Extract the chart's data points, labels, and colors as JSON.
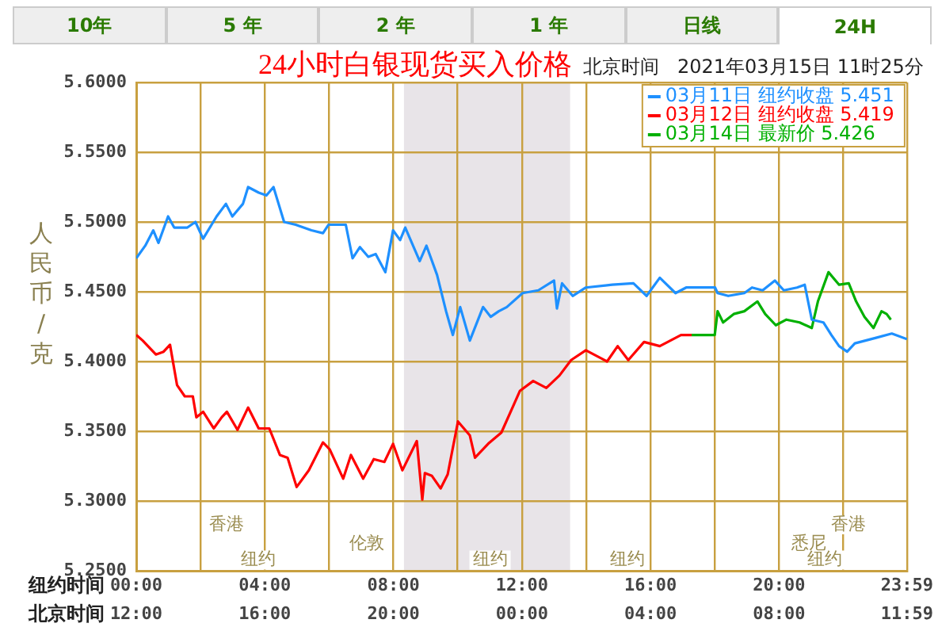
{
  "chart_data": {
    "type": "line",
    "title": "24小时白银现货买入价格",
    "subtitle": "北京时间   2021年03月15日 11时25分",
    "ylabel": "人民币/克",
    "xlabel": "纽约时间",
    "x2label": "北京时间",
    "xlim": [
      0,
      23.983
    ],
    "xticks": [
      {
        "value": 0,
        "label": "00:00"
      },
      {
        "value": 2,
        "label": null
      },
      {
        "value": 4,
        "label": "04:00"
      },
      {
        "value": 6,
        "label": null
      },
      {
        "value": 8,
        "label": "08:00"
      },
      {
        "value": 10,
        "label": null
      },
      {
        "value": 12,
        "label": "12:00"
      },
      {
        "value": 14,
        "label": null
      },
      {
        "value": 16,
        "label": "16:00"
      },
      {
        "value": 18,
        "label": null
      },
      {
        "value": 20,
        "label": "20:00"
      },
      {
        "value": 22,
        "label": null
      },
      {
        "value": 23.983,
        "label": "23:59"
      }
    ],
    "x2lim": [
      "2021-03-14T12:00",
      "2021-03-15T11:59"
    ],
    "x2ticks": [
      {
        "value": "2021-03-14T12:00",
        "label": "12:00"
      },
      {
        "value": "2021-03-14T16:00",
        "label": "16:00"
      },
      {
        "value": "2021-03-14T20:00",
        "label": "20:00"
      },
      {
        "value": "2021-03-15T00:00",
        "label": "00:00"
      },
      {
        "value": "2021-03-15T04:00",
        "label": "04:00"
      },
      {
        "value": "2021-03-15T08:00",
        "label": "08:00"
      },
      {
        "value": "2021-03-15T11:59",
        "label": "11:59"
      }
    ],
    "ylim": [
      5.25,
      5.6
    ],
    "yticks": [
      {
        "value": 5.25,
        "label": "5.2500"
      },
      {
        "value": 5.3,
        "label": "5.3000"
      },
      {
        "value": 5.35,
        "label": "5.3500"
      },
      {
        "value": 5.4,
        "label": "5.4000"
      },
      {
        "value": 5.45,
        "label": "5.4500"
      },
      {
        "value": 5.5,
        "label": "5.5000"
      },
      {
        "value": 5.55,
        "label": "5.5500"
      },
      {
        "value": 5.6,
        "label": "5.6000"
      }
    ],
    "grid": true,
    "legend": "top right",
    "marker": "none",
    "line_style": "solid",
    "bands": [
      {
        "axis": "x",
        "from": 8.33,
        "to": 13.5,
        "color": "#e8e4e8"
      }
    ],
    "series": [
      {
        "name": "03月11日 纽约收盘 5.451",
        "color": "#1e90ff",
        "x": [
          0,
          0.28,
          0.53,
          0.69,
          0.99,
          1.18,
          1.59,
          1.84,
          2.08,
          2.5,
          2.79,
          2.99,
          3.32,
          3.48,
          3.81,
          4.05,
          4.27,
          4.6,
          4.96,
          5.45,
          5.81,
          5.98,
          6.52,
          6.73,
          6.96,
          7.22,
          7.45,
          7.75,
          7.99,
          8.21,
          8.37,
          8.82,
          9.03,
          9.36,
          9.64,
          9.85,
          10.08,
          10.38,
          10.79,
          11.03,
          11.28,
          11.53,
          12.02,
          12.51,
          13.0,
          13.09,
          13.25,
          13.58,
          13.99,
          14.81,
          15.47,
          15.88,
          16.29,
          16.78,
          17.11,
          18.01,
          18.09,
          18.42,
          18.92,
          19.16,
          19.49,
          19.87,
          20.15,
          20.56,
          20.8,
          21.02,
          21.38,
          21.63,
          21.87,
          22.12,
          22.36,
          23.02,
          23.51,
          23.98
        ],
        "values": [
          5.474,
          5.483,
          5.494,
          5.485,
          5.504,
          5.496,
          5.496,
          5.5,
          5.488,
          5.504,
          5.513,
          5.504,
          5.513,
          5.525,
          5.521,
          5.519,
          5.525,
          5.5,
          5.498,
          5.494,
          5.492,
          5.498,
          5.498,
          5.474,
          5.482,
          5.475,
          5.477,
          5.464,
          5.494,
          5.487,
          5.496,
          5.472,
          5.483,
          5.462,
          5.436,
          5.419,
          5.439,
          5.415,
          5.439,
          5.432,
          5.436,
          5.439,
          5.449,
          5.451,
          5.458,
          5.438,
          5.456,
          5.447,
          5.453,
          5.455,
          5.456,
          5.447,
          5.46,
          5.449,
          5.453,
          5.453,
          5.449,
          5.447,
          5.449,
          5.453,
          5.451,
          5.458,
          5.451,
          5.453,
          5.455,
          5.43,
          5.428,
          5.419,
          5.411,
          5.407,
          5.413,
          5.417,
          5.42,
          5.416
        ]
      },
      {
        "name": "03月12日 纽约收盘 5.419",
        "color": "#ff0000",
        "x": [
          0,
          0.2,
          0.61,
          0.85,
          1.05,
          1.27,
          1.51,
          1.76,
          1.87,
          2.08,
          2.41,
          2.66,
          2.82,
          3.15,
          3.48,
          3.81,
          4.14,
          4.47,
          4.71,
          4.99,
          5.37,
          5.81,
          6.02,
          6.44,
          6.68,
          7.06,
          7.39,
          7.72,
          7.99,
          8.28,
          8.73,
          8.9,
          8.98,
          9.2,
          9.47,
          9.69,
          10.01,
          10.38,
          10.54,
          10.95,
          11.36,
          11.94,
          12.35,
          12.76,
          13.17,
          13.53,
          13.99,
          14.65,
          14.98,
          15.31,
          15.8,
          16.29,
          16.95,
          17.28
        ],
        "values": [
          5.419,
          5.415,
          5.405,
          5.407,
          5.412,
          5.383,
          5.375,
          5.375,
          5.36,
          5.364,
          5.352,
          5.36,
          5.364,
          5.351,
          5.367,
          5.352,
          5.352,
          5.333,
          5.331,
          5.31,
          5.322,
          5.342,
          5.337,
          5.316,
          5.333,
          5.316,
          5.33,
          5.328,
          5.341,
          5.322,
          5.343,
          5.301,
          5.32,
          5.318,
          5.309,
          5.319,
          5.357,
          5.347,
          5.331,
          5.341,
          5.349,
          5.379,
          5.386,
          5.381,
          5.39,
          5.401,
          5.408,
          5.4,
          5.411,
          5.401,
          5.414,
          5.411,
          5.419,
          5.419
        ]
      },
      {
        "name": "03月14日 最新价 5.426",
        "color": "#00b000",
        "x": [
          17.28,
          18.0,
          18.09,
          18.26,
          18.59,
          18.92,
          19.33,
          19.57,
          19.9,
          20.23,
          20.64,
          21.02,
          21.21,
          21.54,
          21.87,
          22.17,
          22.4,
          22.66,
          22.94,
          23.19,
          23.35,
          23.48
        ],
        "values": [
          5.419,
          5.419,
          5.436,
          5.428,
          5.434,
          5.436,
          5.443,
          5.434,
          5.426,
          5.43,
          5.428,
          5.424,
          5.443,
          5.464,
          5.455,
          5.456,
          5.443,
          5.432,
          5.424,
          5.436,
          5.434,
          5.43
        ]
      }
    ],
    "annotations": [
      "10年",
      "5 年",
      "2 年",
      "1 年",
      "日线",
      "24H",
      "香港",
      "伦敦",
      "纽约",
      "纽约",
      "纽约",
      "悉尼",
      "香港",
      "纽约"
    ]
  }
}
